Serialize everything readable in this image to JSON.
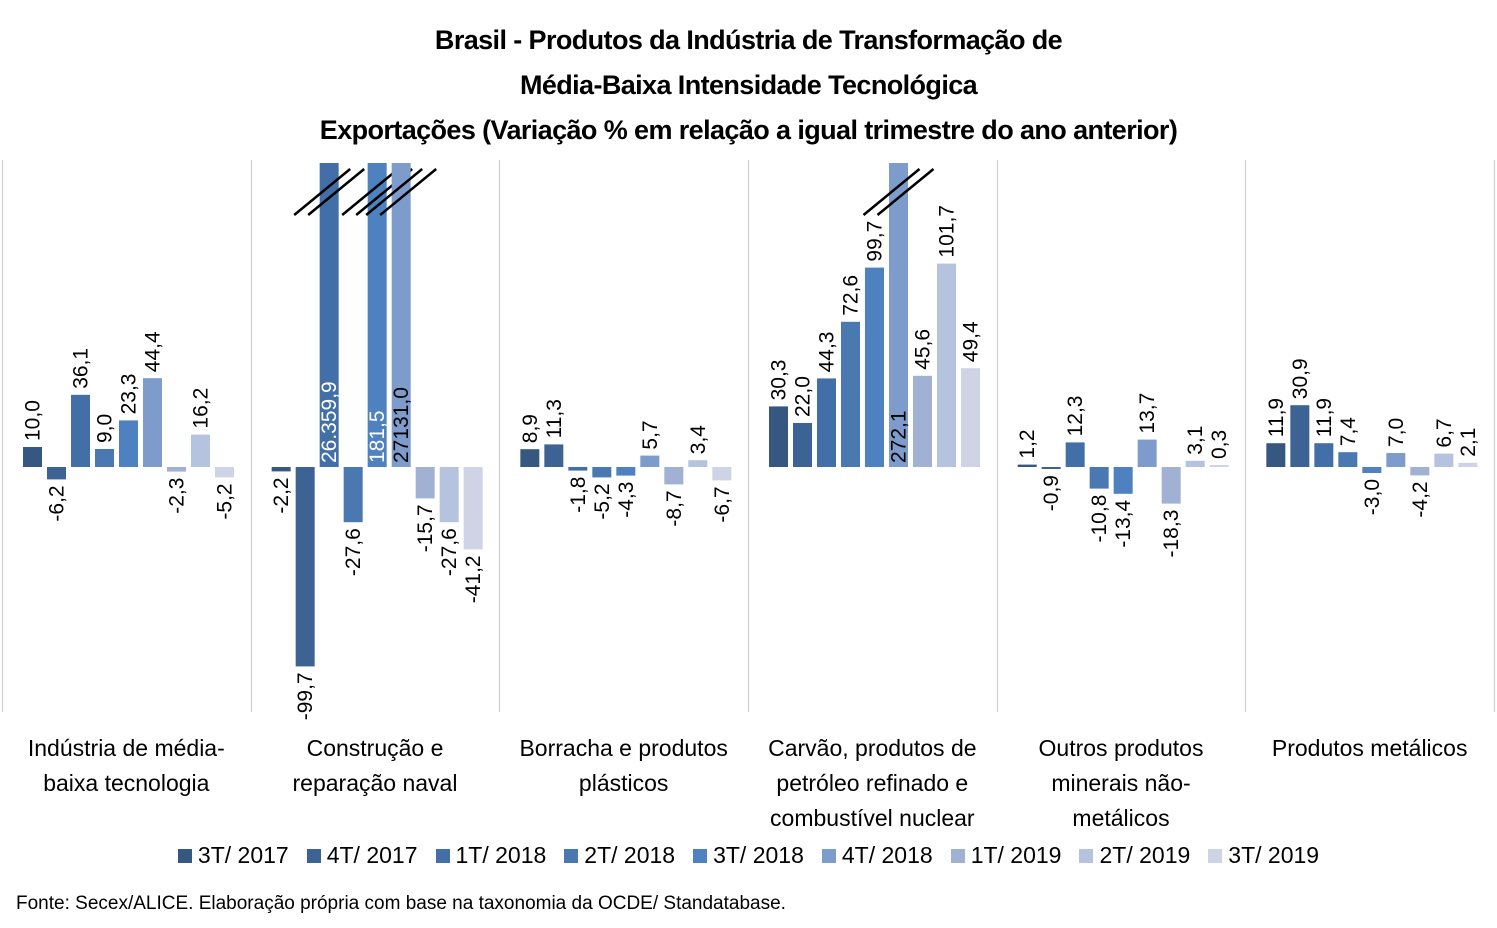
{
  "chart_data": {
    "type": "bar",
    "title": [
      "Brasil - Produtos da Indústria de Transformação de",
      "Média-Baixa Intensidade Tecnológica",
      "Exportações (Variação % em relação a igual trimestre do ano anterior)"
    ],
    "xlabel": "",
    "ylabel": "",
    "ylim": [
      -110,
      152
    ],
    "grid": false,
    "legend_position": "bottom",
    "categories": [
      [
        "Indústria de média-",
        "baixa tecnologia"
      ],
      [
        "Construção e",
        "reparação naval"
      ],
      [
        "Borracha e produtos",
        "plásticos"
      ],
      [
        "Carvão, produtos de",
        "petróleo refinado e",
        "combustível nuclear"
      ],
      [
        "Outros produtos",
        "minerais não-",
        "metálicos"
      ],
      [
        "Produtos metálicos"
      ]
    ],
    "series": [
      {
        "name": "3T/ 2017",
        "color": "#36577f",
        "values": [
          10.0,
          -2.2,
          8.9,
          30.3,
          1.2,
          11.9
        ],
        "labels": [
          "10,0",
          "-2,2",
          "8,9",
          "30,3",
          "1,2",
          "11,9"
        ]
      },
      {
        "name": "4T/ 2017",
        "color": "#3d6395",
        "values": [
          -6.2,
          -99.7,
          11.3,
          22.0,
          -0.9,
          30.9
        ],
        "labels": [
          "-6,2",
          "-99,7",
          "11,3",
          "22,0",
          "-0,9",
          "30,9"
        ]
      },
      {
        "name": "1T/ 2018",
        "color": "#426fa8",
        "values": [
          36.1,
          26359.9,
          -1.8,
          44.3,
          12.3,
          11.9
        ],
        "labels": [
          "36,1",
          "26.359,9",
          "-1,8",
          "44,3",
          "12,3",
          "11,9"
        ]
      },
      {
        "name": "2T/ 2018",
        "color": "#4a78b0",
        "values": [
          9.0,
          -27.6,
          -5.2,
          72.6,
          -10.8,
          7.4
        ],
        "labels": [
          "9,0",
          "-27,6",
          "-5,2",
          "72,6",
          "-10,8",
          "7,4"
        ]
      },
      {
        "name": "3T/ 2018",
        "color": "#4d81bf",
        "values": [
          23.3,
          181.5,
          -4.3,
          99.7,
          -13.4,
          -3.0
        ],
        "labels": [
          "23,3",
          "181,5",
          "-4,3",
          "99,7",
          "-13,4",
          "-3,0"
        ]
      },
      {
        "name": "4T/ 2018",
        "color": "#7d9bcb",
        "values": [
          44.4,
          27131.0,
          5.7,
          272.1,
          13.7,
          7.0
        ],
        "labels": [
          "44,4",
          "27131,0",
          "5,7",
          "272,1",
          "13,7",
          "7,0"
        ]
      },
      {
        "name": "1T/ 2019",
        "color": "#a1b1d3",
        "values": [
          -2.3,
          -15.7,
          -8.7,
          45.6,
          -18.3,
          -4.2
        ],
        "labels": [
          "-2,3",
          "-15,7",
          "-8,7",
          "45,6",
          "-18,3",
          "-4,2"
        ]
      },
      {
        "name": "2T/ 2019",
        "color": "#b6c3df",
        "values": [
          16.2,
          -27.6,
          3.4,
          101.7,
          3.1,
          6.7
        ],
        "labels": [
          "16,2",
          "-27,6",
          "3,4",
          "101,7",
          "3,1",
          "6,7"
        ]
      },
      {
        "name": "3T/ 2019",
        "color": "#ced4e6",
        "values": [
          -5.2,
          -41.2,
          -6.7,
          49.4,
          0.3,
          2.1
        ],
        "labels": [
          "-5,2",
          "-41,2",
          "-6,7",
          "49,4",
          "0,3",
          "2,1"
        ]
      }
    ],
    "axis_breaks": [
      {
        "category_index": 1,
        "series_indices": [
          2,
          4,
          5
        ]
      },
      {
        "category_index": 3,
        "series_indices": [
          5
        ]
      }
    ],
    "source": "Fonte: Secex/ALICE. Elaboração própria com base na taxonomia da OCDE/ Standatabase."
  }
}
